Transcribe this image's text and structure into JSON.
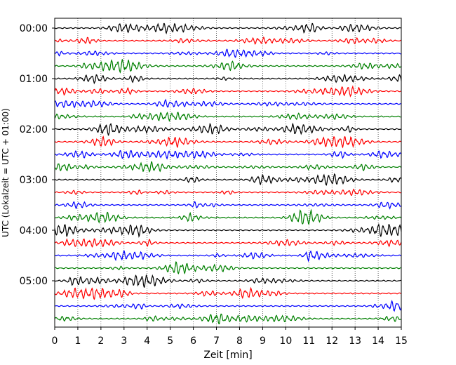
{
  "chart_data": {
    "type": "line",
    "title": "",
    "xlabel": "Zeit  [min]",
    "ylabel": "UTC (Lokalzeit = UTC + 01:00)",
    "xlim": [
      0,
      15
    ],
    "x_ticks": [
      0,
      1,
      2,
      3,
      4,
      5,
      6,
      7,
      8,
      9,
      10,
      11,
      12,
      13,
      14,
      15
    ],
    "y_tick_labels": [
      "00:00",
      "01:00",
      "02:00",
      "03:00",
      "04:00",
      "05:00"
    ],
    "minutes_per_trace": 15,
    "trace_count": 24,
    "trace_colors": [
      "#000000",
      "#ff0000",
      "#0000ff",
      "#008000"
    ],
    "vertical_grid": "dotted at each minute",
    "legend": "none"
  }
}
